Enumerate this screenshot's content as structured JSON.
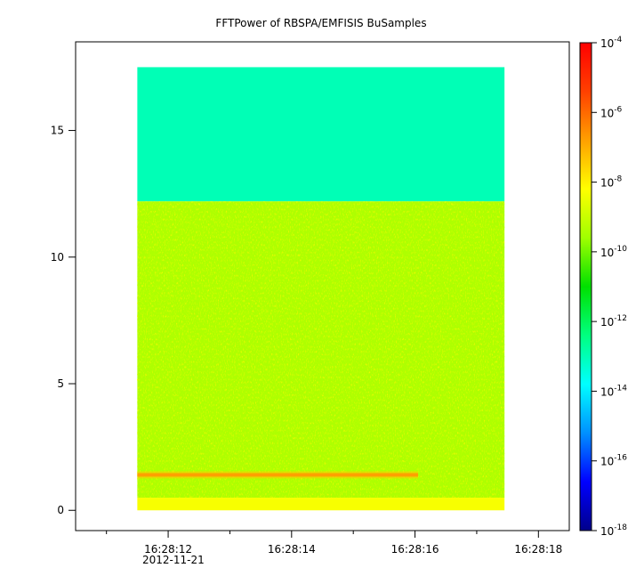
{
  "chart_data": {
    "type": "heatmap",
    "title": "FFTPower of RBSPA/EMFISIS  BuSamples",
    "xlabel": "",
    "ylabel": "",
    "x_ticks": [
      {
        "value": 12,
        "label": "16:28:12"
      },
      {
        "value": 14,
        "label": "16:28:14"
      },
      {
        "value": 16,
        "label": "16:28:16"
      },
      {
        "value": 18,
        "label": "16:28:18"
      }
    ],
    "x_date_label": "2012-11-21",
    "xlim": [
      10.5,
      18.5
    ],
    "x_minor_ticks": [
      11,
      13,
      15,
      17
    ],
    "y_ticks": [
      0,
      5,
      10,
      15
    ],
    "ylim": [
      -0.8,
      18.5
    ],
    "data_extent": {
      "x": [
        11.5,
        17.45
      ],
      "y": [
        0,
        17.5
      ]
    },
    "regions": [
      {
        "y_range": [
          12.2,
          17.5
        ],
        "log10_power": -13
      },
      {
        "y_range": [
          0.5,
          12.2
        ],
        "log10_power": -9.4
      },
      {
        "y_range": [
          0,
          0.5
        ],
        "log10_power": -8.3
      }
    ],
    "features": [
      {
        "name": "",
        "x_range": [
          11.5,
          16.05
        ],
        "y_center": 1.4,
        "log10_power": -6.8
      }
    ],
    "colorbar": {
      "scale": "log",
      "range": [
        1e-18,
        0.0001
      ],
      "tick_exponents": [
        -4,
        -6,
        -8,
        -10,
        -12,
        -14,
        -16,
        -18
      ],
      "tick_base": "10",
      "colormap": [
        "#00008b",
        "#0000ff",
        "#0090ff",
        "#00ffff",
        "#00ff80",
        "#00e000",
        "#a0ff00",
        "#ffff00",
        "#ffa000",
        "#ff4000",
        "#ff0000"
      ]
    },
    "grid": false
  }
}
